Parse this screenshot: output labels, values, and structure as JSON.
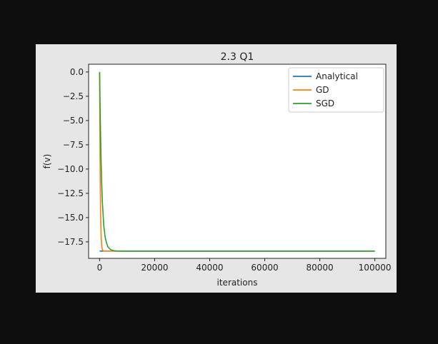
{
  "chart_data": {
    "type": "line",
    "title": "2.3 Q1",
    "xlabel": "iterations",
    "ylabel": "f(v)",
    "xlim": [
      -4000,
      104000
    ],
    "ylim": [
      -19.2,
      0.8
    ],
    "xticks": [
      0,
      20000,
      40000,
      60000,
      80000,
      100000
    ],
    "xtick_labels": [
      "0",
      "20000",
      "40000",
      "60000",
      "80000",
      "100000"
    ],
    "yticks": [
      0.0,
      -2.5,
      -5.0,
      -7.5,
      -10.0,
      -12.5,
      -15.0,
      -17.5
    ],
    "ytick_labels": [
      "0.0",
      "−2.5",
      "−5.0",
      "−7.5",
      "−10.0",
      "−12.5",
      "−15.0",
      "−17.5"
    ],
    "grid": false,
    "legend_position": "top-right",
    "series": [
      {
        "name": "Analytical",
        "color": "#1f77b4",
        "x": [
          0,
          100000
        ],
        "y": [
          -18.45,
          -18.45
        ]
      },
      {
        "name": "GD",
        "color": "#ff7f0e",
        "x": [
          0,
          50,
          100,
          200,
          300,
          400,
          600,
          800,
          1000,
          1500,
          2000,
          100000
        ],
        "y": [
          0.0,
          -3.2,
          -6.0,
          -10.2,
          -13.2,
          -15.2,
          -17.2,
          -18.0,
          -18.3,
          -18.45,
          -18.45,
          -18.45
        ]
      },
      {
        "name": "SGD",
        "color": "#2ca02c",
        "x": [
          0,
          250,
          500,
          750,
          1000,
          1500,
          2000,
          2500,
          3000,
          4000,
          5000,
          6000,
          7000,
          8000,
          10000,
          15000,
          100000
        ],
        "y": [
          0.0,
          -5.0,
          -8.7,
          -11.4,
          -13.4,
          -15.8,
          -17.0,
          -17.6,
          -18.0,
          -18.3,
          -18.4,
          -18.43,
          -18.45,
          -18.45,
          -18.45,
          -18.45,
          -18.45
        ]
      }
    ]
  }
}
